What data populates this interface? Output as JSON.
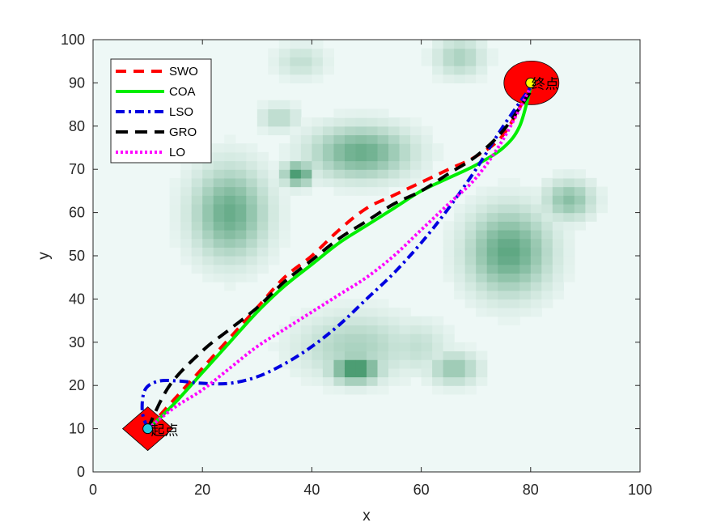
{
  "chart_data": {
    "type": "line",
    "xlabel": "x",
    "ylabel": "y",
    "xlim": [
      0,
      100
    ],
    "ylim": [
      0,
      100
    ],
    "xticks": [
      0,
      20,
      40,
      60,
      80,
      100
    ],
    "yticks": [
      0,
      10,
      20,
      30,
      40,
      50,
      60,
      70,
      80,
      90,
      100
    ],
    "grid": false,
    "legend_position": "top-left",
    "background_heatmap": {
      "colormap": [
        "#eef8f6",
        "#0e7a42"
      ],
      "blobs": [
        {
          "x": 25,
          "y": 60,
          "sx": 4.5,
          "sy": 7,
          "w": 0.6
        },
        {
          "x": 37.5,
          "y": 69,
          "sx": 1.8,
          "sy": 1.8,
          "w": 0.75
        },
        {
          "x": 49,
          "y": 74,
          "sx": 6,
          "sy": 4,
          "w": 0.6
        },
        {
          "x": 34,
          "y": 82,
          "sx": 2.5,
          "sy": 2,
          "w": 0.25
        },
        {
          "x": 38,
          "y": 95,
          "sx": 3,
          "sy": 2.5,
          "w": 0.2
        },
        {
          "x": 67,
          "y": 96,
          "sx": 3,
          "sy": 3,
          "w": 0.3
        },
        {
          "x": 87,
          "y": 63,
          "sx": 3,
          "sy": 3,
          "w": 0.45
        },
        {
          "x": 76,
          "y": 51,
          "sx": 5,
          "sy": 6.5,
          "w": 0.65
        },
        {
          "x": 48,
          "y": 24,
          "sx": 3,
          "sy": 2.2,
          "w": 0.85
        },
        {
          "x": 48,
          "y": 29,
          "sx": 7,
          "sy": 5,
          "w": 0.3
        },
        {
          "x": 66,
          "y": 24,
          "sx": 3,
          "sy": 2.5,
          "w": 0.4
        },
        {
          "x": 59,
          "y": 29,
          "sx": 4,
          "sy": 4,
          "w": 0.2
        }
      ]
    },
    "start": {
      "x": 10,
      "y": 10,
      "label": "起点",
      "marker": "diamond",
      "color": "#ff0000"
    },
    "goal": {
      "x": 80,
      "y": 90,
      "label": "终点",
      "marker": "circle",
      "color": "#ff0000"
    },
    "series": [
      {
        "name": "SWO",
        "color": "#ff0000",
        "dash": "13 9",
        "width": 4,
        "x": [
          10,
          15,
          20,
          25,
          30,
          35,
          40,
          45,
          50,
          55,
          60,
          65,
          70,
          75,
          80
        ],
        "y": [
          10,
          17,
          24,
          31,
          38,
          45,
          50,
          56,
          61,
          64,
          67,
          70,
          73,
          78,
          89
        ]
      },
      {
        "name": "COA",
        "color": "#00ee00",
        "dash": "",
        "width": 4,
        "x": [
          11,
          15,
          20,
          25,
          30,
          35,
          40,
          45,
          50,
          55,
          60,
          65,
          70,
          75,
          78,
          80
        ],
        "y": [
          11,
          16,
          23,
          30,
          37,
          43,
          48,
          53,
          57,
          61,
          65,
          68,
          71,
          75,
          80,
          89
        ]
      },
      {
        "name": "LSO",
        "color": "#0000e0",
        "dash": "11 5 3 5",
        "width": 4,
        "x": [
          10,
          9,
          9.5,
          12,
          16,
          20,
          25,
          30,
          35,
          40,
          45,
          50,
          55,
          60,
          65,
          70,
          75,
          80
        ],
        "y": [
          10,
          14,
          19,
          21,
          21,
          20.5,
          20.5,
          22,
          25,
          29,
          34,
          40,
          46,
          53,
          61,
          70,
          80,
          89
        ]
      },
      {
        "name": "GRO",
        "color": "#000000",
        "dash": "15 9",
        "width": 4,
        "x": [
          10,
          14,
          20,
          25,
          30,
          35,
          40,
          45,
          50,
          55,
          60,
          65,
          70,
          75,
          80
        ],
        "y": [
          10,
          20,
          28,
          33,
          38,
          44,
          49,
          54,
          58,
          62,
          65,
          69,
          73,
          79,
          88
        ]
      },
      {
        "name": "LO",
        "color": "#ff00ff",
        "dash": "3 3",
        "width": 4,
        "x": [
          10,
          15,
          20,
          25,
          30,
          35,
          40,
          45,
          50,
          55,
          60,
          65,
          70,
          75,
          80
        ],
        "y": [
          10,
          15,
          19,
          24,
          29,
          33,
          37,
          41,
          45,
          50,
          56,
          62,
          68,
          77,
          89
        ]
      }
    ]
  }
}
